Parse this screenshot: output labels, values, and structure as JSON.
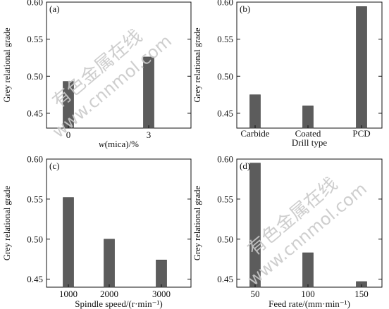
{
  "colors": {
    "bar": "#5c5c5c",
    "axis": "#111111",
    "watermark": "#c9c9c9"
  },
  "watermark": {
    "line1": "有色金属在线",
    "line2": "www.cnnmol.com"
  },
  "chart_data": [
    {
      "type": "bar",
      "panel_label": "(a)",
      "categories": [
        "0",
        "3"
      ],
      "values": [
        0.493,
        0.526
      ],
      "xlabel_italic": "w",
      "xlabel": "(mica)/%",
      "ylabel": "Grey relational grade",
      "ylim": [
        0.43,
        0.6
      ],
      "yticks": [
        "0.45",
        "0.50",
        "0.55",
        "0.60"
      ]
    },
    {
      "type": "bar",
      "panel_label": "(b)",
      "categories": [
        "Carbide",
        "Coated",
        "PCD"
      ],
      "values": [
        0.475,
        0.46,
        0.594
      ],
      "xlabel": "Drill type",
      "ylabel": "Grey relational grade",
      "ylim": [
        0.43,
        0.6
      ],
      "yticks": [
        "0.45",
        "0.50",
        "0.55",
        "0.60"
      ]
    },
    {
      "type": "bar",
      "panel_label": "(c)",
      "categories": [
        "1000",
        "2000",
        "3000"
      ],
      "values": [
        0.552,
        0.5,
        0.474
      ],
      "xlabel": "Spindle speed/(r·min⁻¹)",
      "ylabel": "Grey relational grade",
      "ylim": [
        0.44,
        0.6
      ],
      "yticks": [
        "0.45",
        "0.50",
        "0.55",
        "0.60"
      ]
    },
    {
      "type": "bar",
      "panel_label": "(d)",
      "categories": [
        "50",
        "100",
        "150"
      ],
      "values": [
        0.595,
        0.483,
        0.447
      ],
      "xlabel": "Feed rate/(mm·min⁻¹)",
      "ylabel": "Grey relational grade",
      "ylim": [
        0.44,
        0.6
      ],
      "yticks": [
        "0.45",
        "0.50",
        "0.55",
        "0.60"
      ]
    }
  ]
}
